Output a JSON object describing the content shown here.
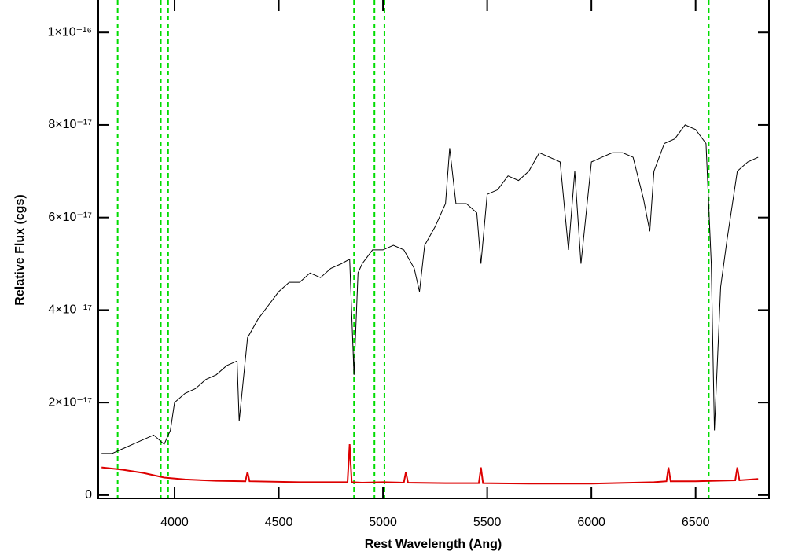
{
  "chart_data": {
    "type": "line",
    "x_label": "Rest Wavelength (Ang)",
    "y_label": "Relative Flux (cgs)",
    "xlim": [
      3634,
      6852
    ],
    "ylim": [
      -7e-19,
      1.07e-16
    ],
    "xticks": [
      4000,
      4500,
      5000,
      5500,
      6000,
      6500
    ],
    "yticks": [
      0,
      {
        "value": 2e-17,
        "label": "2×10⁻¹⁷"
      },
      {
        "value": 4e-17,
        "label": "4×10⁻¹⁷"
      },
      {
        "value": 6e-17,
        "label": "6×10⁻¹⁷"
      },
      {
        "value": 8e-17,
        "label": "8×10⁻¹⁷"
      },
      {
        "value": 1e-16,
        "label": "1×10⁻¹⁶"
      }
    ],
    "vlines": [
      3727,
      3934,
      3969,
      4861,
      4959,
      5007,
      6563
    ],
    "vline_color": "#00dd00",
    "series": [
      {
        "color": "#000000",
        "x": [
          3650,
          3700,
          3750,
          3800,
          3850,
          3900,
          3950,
          3980,
          4000,
          4050,
          4100,
          4150,
          4200,
          4250,
          4300,
          4310,
          4350,
          4400,
          4450,
          4500,
          4550,
          4600,
          4650,
          4700,
          4750,
          4800,
          4840,
          4861,
          4880,
          4900,
          4950,
          5000,
          5050,
          5100,
          5150,
          5175,
          5200,
          5250,
          5300,
          5320,
          5350,
          5400,
          5450,
          5470,
          5500,
          5550,
          5600,
          5650,
          5700,
          5750,
          5800,
          5850,
          5890,
          5920,
          5950,
          6000,
          6050,
          6100,
          6150,
          6200,
          6250,
          6280,
          6300,
          6350,
          6400,
          6450,
          6500,
          6550,
          6575,
          6590,
          6620,
          6650,
          6700,
          6750,
          6800
        ],
        "values": [
          9e-18,
          9e-18,
          1e-17,
          1.1e-17,
          1.2e-17,
          1.3e-17,
          1.1e-17,
          1.4e-17,
          2e-17,
          2.2e-17,
          2.3e-17,
          2.5e-17,
          2.6e-17,
          2.8e-17,
          2.9e-17,
          1.6e-17,
          3.4e-17,
          3.8e-17,
          4.1e-17,
          4.4e-17,
          4.6e-17,
          4.6e-17,
          4.8e-17,
          4.7e-17,
          4.9e-17,
          5e-17,
          5.1e-17,
          2.6e-17,
          4.8e-17,
          5e-17,
          5.3e-17,
          5.3e-17,
          5.4e-17,
          5.3e-17,
          4.9e-17,
          4.4e-17,
          5.4e-17,
          5.8e-17,
          6.3e-17,
          7.5e-17,
          6.3e-17,
          6.3e-17,
          6.1e-17,
          5e-17,
          6.5e-17,
          6.6e-17,
          6.9e-17,
          6.8e-17,
          7e-17,
          7.4e-17,
          7.3e-17,
          7.2e-17,
          5.3e-17,
          7e-17,
          5e-17,
          7.2e-17,
          7.3e-17,
          7.4e-17,
          7.4e-17,
          7.3e-17,
          6.4e-17,
          5.7e-17,
          7e-17,
          7.6e-17,
          7.7e-17,
          8e-17,
          7.9e-17,
          7.6e-17,
          5e-17,
          1.4e-17,
          4.5e-17,
          5.5e-17,
          7e-17,
          7.2e-17,
          7.3e-17
        ]
      },
      {
        "color": "#dd0000",
        "x": [
          3650,
          3750,
          3850,
          3950,
          4050,
          4200,
          4340,
          4350,
          4360,
          4600,
          4830,
          4840,
          4850,
          4900,
          5000,
          5100,
          5110,
          5120,
          5300,
          5460,
          5470,
          5480,
          5700,
          6000,
          6300,
          6360,
          6370,
          6380,
          6500,
          6690,
          6700,
          6710,
          6800
        ],
        "values": [
          6e-18,
          5.5e-18,
          4.8e-18,
          3.8e-18,
          3.4e-18,
          3.1e-18,
          3e-18,
          5e-18,
          3e-18,
          2.8e-18,
          2.8e-18,
          1.1e-17,
          2.8e-18,
          2.7e-18,
          2.8e-18,
          2.7e-18,
          5e-18,
          2.7e-18,
          2.6e-18,
          2.6e-18,
          6e-18,
          2.6e-18,
          2.5e-18,
          2.5e-18,
          2.8e-18,
          3e-18,
          6e-18,
          3e-18,
          3e-18,
          3.2e-18,
          6e-18,
          3.2e-18,
          3.5e-18
        ]
      }
    ]
  }
}
